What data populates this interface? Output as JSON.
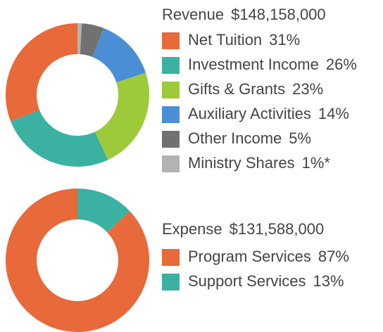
{
  "chart_data": [
    {
      "type": "donut",
      "title": "Revenue",
      "total": "$148,158,000",
      "categories": [
        "Net Tuition",
        "Investment Income",
        "Gifts & Grants",
        "Auxiliary Activities",
        "Other Income",
        "Ministry Shares"
      ],
      "values": [
        31,
        26,
        23,
        14,
        5,
        1
      ],
      "value_labels": [
        "31%",
        "26%",
        "23%",
        "14%",
        "5%",
        "1%*"
      ],
      "colors": [
        "#e8693a",
        "#3bb1a2",
        "#9dca3b",
        "#4a8fd5",
        "#717171",
        "#b3b3b3"
      ]
    },
    {
      "type": "donut",
      "title": "Expense",
      "total": "$131,588,000",
      "categories": [
        "Program Services",
        "Support Services"
      ],
      "values": [
        87,
        13
      ],
      "value_labels": [
        "87%",
        "13%"
      ],
      "colors": [
        "#e8693a",
        "#3bb1a2"
      ]
    }
  ]
}
